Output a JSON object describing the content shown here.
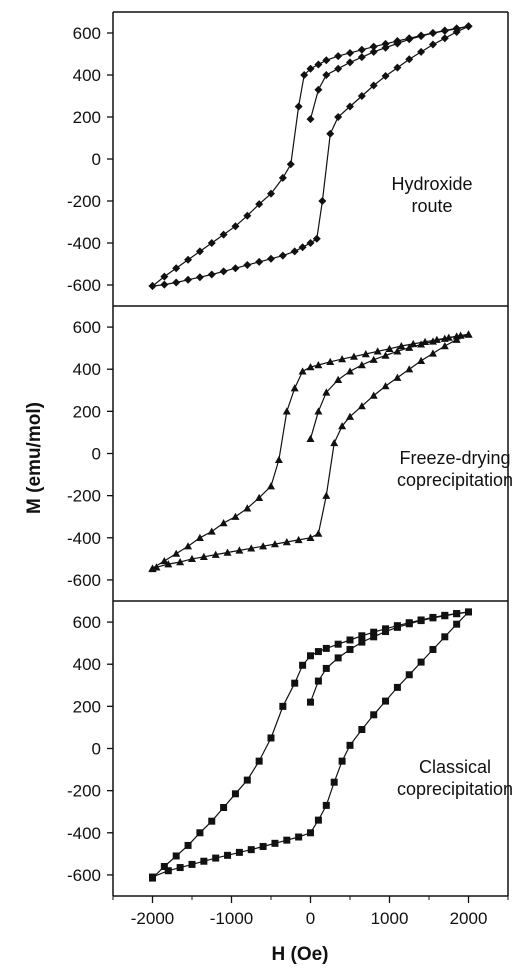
{
  "chart_data": {
    "type": "line",
    "xlabel": "H (Oe)",
    "ylabel": "M (emu/mol)",
    "xlim": [
      -2500,
      2500
    ],
    "x_ticks": [
      -2000,
      -1000,
      0,
      1000,
      2000
    ],
    "grid": false,
    "legend": "none",
    "panels": [
      {
        "annotation": [
          "Hydroxide",
          "route"
        ],
        "marker": "diamond",
        "ylim": [
          -700,
          700
        ],
        "y_ticks": [
          -600,
          -400,
          -200,
          0,
          200,
          400,
          600
        ],
        "series": [
          {
            "x": [
              -2000,
              -1850,
              -1700,
              -1550,
              -1400,
              -1250,
              -1100,
              -950,
              -800,
              -650,
              -500,
              -350,
              -250,
              -150,
              -80,
              0,
              100,
              200,
              350,
              500,
              650,
              800,
              950,
              1100,
              1250,
              1400,
              1550,
              1700,
              1850,
              2000
            ],
            "y": [
              -605,
              -560,
              -520,
              -480,
              -440,
              -400,
              -360,
              -320,
              -270,
              -215,
              -165,
              -90,
              -25,
              250,
              400,
              430,
              450,
              470,
              490,
              505,
              520,
              535,
              548,
              562,
              575,
              588,
              600,
              610,
              620,
              632
            ]
          },
          {
            "x": [
              2000,
              1850,
              1700,
              1550,
              1400,
              1250,
              1100,
              950,
              800,
              650,
              500,
              350,
              250,
              150,
              80,
              0,
              -100,
              -200,
              -350,
              -500,
              -650,
              -800,
              -950,
              -1100,
              -1250,
              -1400,
              -1550,
              -1700,
              -1850,
              -2000
            ],
            "y": [
              632,
              605,
              575,
              545,
              510,
              475,
              435,
              395,
              350,
              300,
              250,
              200,
              120,
              -200,
              -380,
              -400,
              -420,
              -440,
              -460,
              -475,
              -490,
              -505,
              -520,
              -535,
              -550,
              -563,
              -575,
              -588,
              -598,
              -605
            ]
          },
          {
            "x": [
              0,
              100,
              200,
              350,
              500,
              650,
              800,
              950,
              1100,
              1250,
              1400,
              1550,
              1700,
              1850,
              2000
            ],
            "y": [
              190,
              330,
              400,
              430,
              460,
              485,
              510,
              530,
              550,
              570,
              585,
              600,
              612,
              622,
              632
            ]
          }
        ]
      },
      {
        "annotation": [
          "Freeze-drying",
          "coprecipitation"
        ],
        "marker": "triangle",
        "ylim": [
          -700,
          700
        ],
        "y_ticks": [
          -600,
          -400,
          -200,
          0,
          200,
          400,
          600
        ],
        "series": [
          {
            "x": [
              -2000,
              -1850,
              -1700,
              -1550,
              -1400,
              -1250,
              -1100,
              -950,
              -800,
              -650,
              -500,
              -400,
              -300,
              -200,
              -100,
              0,
              100,
              250,
              400,
              550,
              700,
              850,
              1000,
              1150,
              1300,
              1450,
              1600,
              1750,
              1900,
              2000
            ],
            "y": [
              -545,
              -510,
              -475,
              -440,
              -400,
              -370,
              -330,
              -300,
              -260,
              -210,
              -155,
              -30,
              200,
              310,
              390,
              410,
              420,
              435,
              448,
              460,
              472,
              485,
              497,
              510,
              520,
              530,
              540,
              550,
              560,
              565
            ]
          },
          {
            "x": [
              2000,
              1850,
              1700,
              1550,
              1400,
              1250,
              1100,
              950,
              800,
              650,
              500,
              400,
              300,
              200,
              100,
              0,
              -150,
              -300,
              -450,
              -600,
              -750,
              -900,
              -1050,
              -1200,
              -1350,
              -1500,
              -1650,
              -1800,
              -1950,
              -2000
            ],
            "y": [
              565,
              540,
              510,
              475,
              440,
              400,
              360,
              320,
              275,
              225,
              175,
              130,
              50,
              -200,
              -380,
              -400,
              -410,
              -420,
              -430,
              -440,
              -450,
              -460,
              -470,
              -480,
              -490,
              -500,
              -515,
              -525,
              -540,
              -548
            ]
          },
          {
            "x": [
              0,
              100,
              200,
              350,
              500,
              650,
              800,
              950,
              1100,
              1250,
              1400,
              1550,
              1700,
              1850,
              2000
            ],
            "y": [
              70,
              200,
              290,
              350,
              390,
              420,
              445,
              465,
              485,
              502,
              518,
              532,
              545,
              556,
              565
            ]
          }
        ]
      },
      {
        "annotation": [
          "Classical",
          "coprecipitation"
        ],
        "marker": "square",
        "ylim": [
          -700,
          700
        ],
        "y_ticks": [
          -600,
          -400,
          -200,
          0,
          200,
          400,
          600
        ],
        "series": [
          {
            "x": [
              -2000,
              -1850,
              -1700,
              -1550,
              -1400,
              -1250,
              -1100,
              -950,
              -800,
              -650,
              -500,
              -350,
              -200,
              -100,
              0,
              100,
              200,
              350,
              500,
              650,
              800,
              950,
              1100,
              1250,
              1400,
              1550,
              1700,
              1850,
              2000
            ],
            "y": [
              -615,
              -560,
              -510,
              -460,
              -400,
              -345,
              -280,
              -215,
              -150,
              -60,
              50,
              200,
              310,
              395,
              440,
              460,
              475,
              495,
              515,
              535,
              552,
              568,
              583,
              597,
              610,
              622,
              632,
              640,
              648
            ]
          },
          {
            "x": [
              2000,
              1850,
              1700,
              1550,
              1400,
              1250,
              1100,
              950,
              800,
              650,
              500,
              400,
              300,
              200,
              100,
              0,
              -150,
              -300,
              -450,
              -600,
              -750,
              -900,
              -1050,
              -1200,
              -1350,
              -1500,
              -1650,
              -1800,
              -2000
            ],
            "y": [
              648,
              590,
              530,
              470,
              410,
              350,
              290,
              225,
              160,
              90,
              15,
              -60,
              -160,
              -270,
              -340,
              -400,
              -420,
              -435,
              -450,
              -465,
              -480,
              -493,
              -507,
              -520,
              -535,
              -550,
              -565,
              -580,
              -610
            ]
          },
          {
            "x": [
              0,
              100,
              200,
              350,
              500,
              650,
              800,
              950,
              1100,
              1250,
              1400,
              1550,
              1700,
              1850,
              2000
            ],
            "y": [
              220,
              320,
              380,
              430,
              470,
              505,
              530,
              555,
              575,
              592,
              607,
              620,
              630,
              640,
              648
            ]
          }
        ]
      }
    ]
  }
}
